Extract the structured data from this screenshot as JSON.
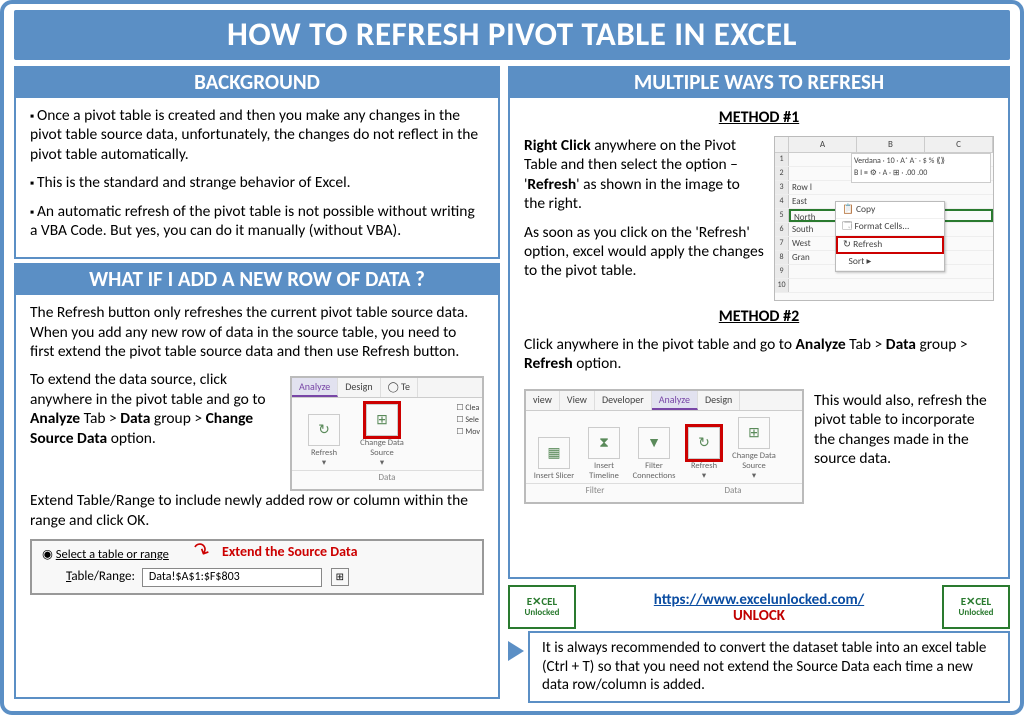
{
  "colors": {
    "accent": "#5b8fc5",
    "text": "#000000",
    "highlight_red": "#c00000",
    "link_blue": "#0b4da2",
    "excel_green": "#2a7a2f"
  },
  "title": "HOW TO REFRESH PIVOT TABLE IN EXCEL",
  "left": {
    "background": {
      "heading": "BACKGROUND",
      "bullets": [
        "Once a pivot table is created and then you make any changes in the pivot table source data, unfortunately, the changes do not reflect in the pivot table automatically.",
        "This is the standard and strange behavior of Excel.",
        "An automatic refresh of the pivot table is not possible without writing a VBA Code. But yes, you can do it manually (without VBA)."
      ]
    },
    "newrow": {
      "heading": "WHAT IF I ADD A NEW ROW OF DATA ?",
      "p1": "The Refresh button only refreshes the current pivot table source data. When you add any new row of data in the source table, you need to first extend the pivot table source data and then use Refresh button.",
      "p2_a": "To extend the data source, click anywhere in the pivot table and go to ",
      "p2_b": "Analyze",
      "p2_c": " Tab > ",
      "p2_d": "Data",
      "p2_e": " group > ",
      "p2_f": "Change Source Data",
      "p2_g": " option.",
      "p3": "Extend Table/Range to include newly added row or column within the range and click OK.",
      "range_dialog": {
        "radio_label": "Select a table or range",
        "field_label": "Table/Range:",
        "value": "Data!$A$1:$F$803",
        "annotation": "Extend the Source Data"
      },
      "ribbon_shot": {
        "tabs": [
          "Analyze",
          "Design"
        ],
        "icons": [
          {
            "label": "Refresh",
            "glyph": "↻"
          },
          {
            "label": "Change Data Source",
            "glyph": "⊞",
            "highlight": true
          }
        ],
        "side": [
          "Clea",
          "Sele",
          "Mov"
        ],
        "group": "Data"
      }
    }
  },
  "right": {
    "heading": "MULTIPLE WAYS TO REFRESH",
    "method1": {
      "label": "METHOD #1",
      "p1_a": "Right Click",
      "p1_b": " anywhere on the Pivot Table and then select the option – '",
      "p1_c": "Refresh",
      "p1_d": "' as shown in the image to the right.",
      "p2": "As soon as you click on the 'Refresh' option, excel would apply the changes to the pivot table.",
      "context_shot": {
        "cols": [
          "A",
          "B",
          "C"
        ],
        "rows": [
          {
            "n": "1",
            "c": ""
          },
          {
            "n": "2",
            "c": ""
          },
          {
            "n": "3",
            "c": "Row l"
          },
          {
            "n": "4",
            "c": "East"
          },
          {
            "n": "5",
            "c": "North",
            "sel": true
          },
          {
            "n": "6",
            "c": "South"
          },
          {
            "n": "7",
            "c": "West"
          },
          {
            "n": "8",
            "c": "Gran"
          },
          {
            "n": "9",
            "c": ""
          },
          {
            "n": "10",
            "c": ""
          }
        ],
        "minibar": "Verdana · 10 · A⁺ A⁻ · $ % ⟪⟫",
        "minibar2": "B I ≡ ⚙ · A · ⊞ · .00 .00 ",
        "menu": [
          {
            "l": "Copy"
          },
          {
            "l": "Format Cells..."
          },
          {
            "l": "Refresh",
            "highlight": true
          },
          {
            "l": "Sort                       ▸"
          }
        ]
      }
    },
    "method2": {
      "label": "METHOD #2",
      "p1_a": "Click anywhere in the pivot table and go to ",
      "p1_b": "Analyze",
      "p1_c": " Tab > ",
      "p1_d": "Data",
      "p1_e": " group > ",
      "p1_f": "Refresh",
      "p1_g": " option.",
      "p2": "This would also, refresh the pivot table to incorporate the changes made in the source data.",
      "ribbon_shot": {
        "tabs": [
          "view",
          "View",
          "Developer",
          "Analyze",
          "Design"
        ],
        "active_tab": "Analyze",
        "icons": [
          {
            "label": "Insert Slicer",
            "glyph": "▦"
          },
          {
            "label": "Insert Timeline",
            "glyph": "⧗"
          },
          {
            "label": "Filter Connections",
            "glyph": "▼"
          },
          {
            "label": "Refresh",
            "glyph": "↻",
            "highlight": true
          },
          {
            "label": "Change Data Source",
            "glyph": "⊞"
          }
        ],
        "groups": [
          "Filter",
          "Data"
        ]
      }
    },
    "footer": {
      "url": "https://www.excelunlocked.com/",
      "brand": "UNLOCK",
      "logo_top": "E✕CEL",
      "logo_bottom": "Unlocked",
      "tip": "It is always recommended to convert the dataset table into an excel table (Ctrl + T) so that you need not extend the Source Data each time a new data row/column is added."
    }
  }
}
